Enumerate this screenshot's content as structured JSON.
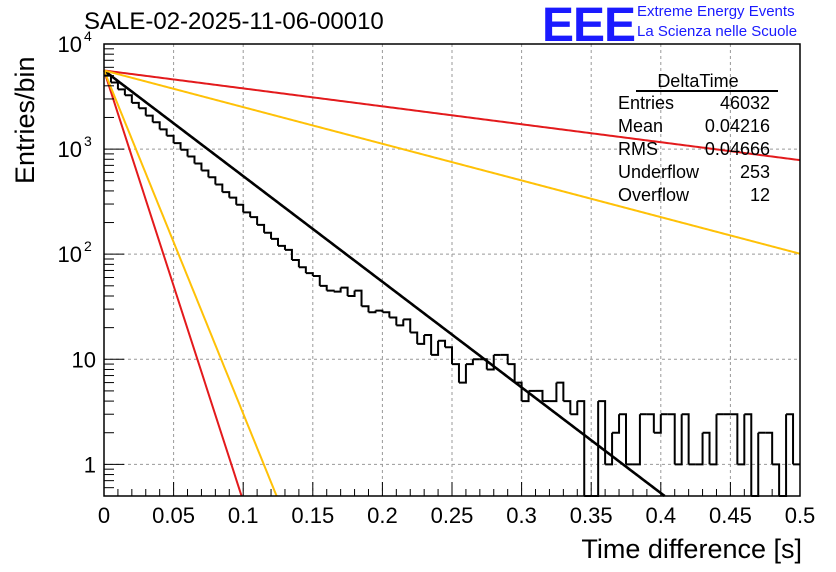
{
  "header": {
    "run_title": "SALE-02-2025-11-06-00010"
  },
  "logo": {
    "mark": "EEE",
    "line1": "Extreme Energy Events",
    "line2": "La Scienza nelle Scuole"
  },
  "stats_box": {
    "title": "DeltaTime",
    "rows": [
      {
        "label": "Entries",
        "value": "46032"
      },
      {
        "label": "Mean",
        "value": "0.04216"
      },
      {
        "label": "RMS",
        "value": "0.04666"
      },
      {
        "label": "Underflow",
        "value": "253"
      },
      {
        "label": "Overflow",
        "value": "12"
      }
    ]
  },
  "chart_data": {
    "type": "histogram",
    "title": "SALE-02-2025-11-06-00010",
    "xlabel": "Time difference [s]",
    "ylabel": "Entries/bin",
    "xlim": [
      0,
      0.5
    ],
    "ylim": [
      0.5,
      10000
    ],
    "yscale": "log",
    "grid": true,
    "bin_width": 0.005,
    "x_ticks": [
      "0",
      "0.05",
      "0.1",
      "0.15",
      "0.2",
      "0.25",
      "0.3",
      "0.35",
      "0.4",
      "0.45",
      "0.5"
    ],
    "y_ticks": [
      {
        "value": 1,
        "label": "1"
      },
      {
        "value": 10,
        "label": "10"
      },
      {
        "value": 100,
        "label": "10",
        "sup": "2"
      },
      {
        "value": 1000,
        "label": "10",
        "sup": "3"
      },
      {
        "value": 10000,
        "label": "10",
        "sup": "4"
      }
    ],
    "histogram_values": [
      5000,
      4300,
      3700,
      3250,
      2750,
      2450,
      2080,
      1800,
      1540,
      1340,
      1140,
      985,
      850,
      730,
      625,
      540,
      460,
      390,
      345,
      295,
      250,
      225,
      190,
      160,
      140,
      120,
      110,
      88,
      75,
      66,
      62,
      50,
      45,
      44,
      48,
      40,
      45,
      32,
      28,
      29,
      28,
      25,
      21,
      24,
      18,
      14,
      17,
      11,
      15,
      13,
      9,
      6,
      9,
      10,
      10,
      8,
      11,
      11,
      9,
      6,
      4,
      5,
      5,
      4,
      4,
      6,
      4,
      3,
      4,
      0,
      0,
      4,
      1,
      2,
      3,
      1,
      1,
      3,
      3,
      2,
      3,
      3,
      1,
      3,
      1,
      1,
      2,
      1,
      3,
      3,
      3,
      1,
      3,
      0,
      2,
      2,
      1,
      0,
      3,
      1
    ],
    "fit_curves": [
      {
        "name": "exp-fit",
        "color": "#000000",
        "a": 5600,
        "tau": 0.0432
      },
      {
        "name": "ref-slow-red",
        "color": "#e31a1c",
        "a": 5600,
        "tau": 0.2545
      },
      {
        "name": "ref-slow-yellow",
        "color": "#ffc107",
        "a": 5600,
        "tau": 0.1245
      },
      {
        "name": "ref-fast-red",
        "color": "#e31a1c",
        "a": 5600,
        "tau": 0.0106
      },
      {
        "name": "ref-fast-yellow",
        "color": "#ffc107",
        "a": 5600,
        "tau": 0.0133
      }
    ]
  }
}
